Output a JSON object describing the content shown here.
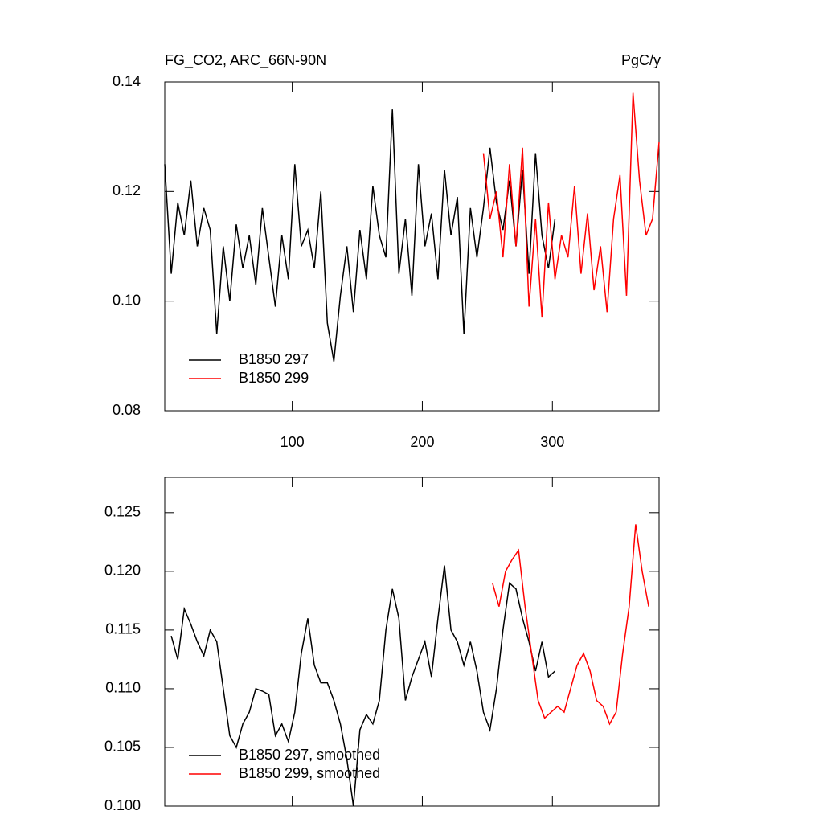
{
  "chart_data": [
    {
      "type": "line",
      "title": "FG_CO2, ARC_66N-90N",
      "units": "PgC/y",
      "xlim": [
        2,
        382
      ],
      "xticks": [
        100,
        200,
        300
      ],
      "xtick_labels": true,
      "ylim": [
        0.08,
        0.14
      ],
      "yticks": [
        0.08,
        {
          "value": 0.1,
          "label": "0.10"
        },
        0.12,
        0.14
      ],
      "legend": "lower left",
      "series": [
        {
          "name": "B1850 297",
          "color": "#000000",
          "x": [
            2,
            7,
            12,
            17,
            22,
            27,
            32,
            37,
            42,
            47,
            52,
            57,
            62,
            67,
            72,
            77,
            82,
            87,
            92,
            97,
            102,
            107,
            112,
            117,
            122,
            127,
            132,
            137,
            142,
            147,
            152,
            157,
            162,
            167,
            172,
            177,
            182,
            187,
            192,
            197,
            202,
            207,
            212,
            217,
            222,
            227,
            232,
            237,
            242,
            247,
            252,
            257,
            262,
            267,
            272,
            277,
            282,
            287,
            292,
            297,
            302
          ],
          "values": [
            0.125,
            0.105,
            0.118,
            0.112,
            0.122,
            0.11,
            0.117,
            0.113,
            0.094,
            0.11,
            0.1,
            0.114,
            0.106,
            0.112,
            0.103,
            0.117,
            0.108,
            0.099,
            0.112,
            0.104,
            0.125,
            0.11,
            0.113,
            0.106,
            0.12,
            0.096,
            0.089,
            0.101,
            0.11,
            0.098,
            0.113,
            0.104,
            0.121,
            0.112,
            0.108,
            0.135,
            0.105,
            0.115,
            0.101,
            0.125,
            0.11,
            0.116,
            0.104,
            0.124,
            0.112,
            0.119,
            0.094,
            0.117,
            0.108,
            0.117,
            0.128,
            0.118,
            0.113,
            0.122,
            0.11,
            0.124,
            0.105,
            0.127,
            0.112,
            0.106,
            0.115
          ]
        },
        {
          "name": "B1850 299",
          "color": "#ff0000",
          "x": [
            247,
            252,
            257,
            262,
            267,
            272,
            277,
            282,
            287,
            292,
            297,
            302,
            307,
            312,
            317,
            322,
            327,
            332,
            337,
            342,
            347,
            352,
            357,
            362,
            367,
            372,
            377,
            382
          ],
          "values": [
            0.127,
            0.115,
            0.12,
            0.108,
            0.125,
            0.11,
            0.128,
            0.099,
            0.115,
            0.097,
            0.118,
            0.104,
            0.112,
            0.108,
            0.121,
            0.105,
            0.116,
            0.102,
            0.11,
            0.098,
            0.115,
            0.123,
            0.101,
            0.138,
            0.122,
            0.112,
            0.115,
            0.129
          ]
        }
      ]
    },
    {
      "type": "line",
      "xlim": [
        2,
        382
      ],
      "xticks": [
        100,
        200,
        300
      ],
      "xtick_labels": false,
      "ylim": [
        0.1,
        0.128
      ],
      "yticks": [
        {
          "value": 0.1,
          "label": "0.100"
        },
        0.105,
        {
          "value": 0.11,
          "label": "0.110"
        },
        0.115,
        {
          "value": 0.12,
          "label": "0.120"
        },
        0.125
      ],
      "legend": "lower left",
      "series": [
        {
          "name": "B1850 297, smoothed",
          "color": "#000000",
          "x": [
            7,
            12,
            17,
            22,
            27,
            32,
            37,
            42,
            47,
            52,
            57,
            62,
            67,
            72,
            77,
            82,
            87,
            92,
            97,
            102,
            107,
            112,
            117,
            122,
            127,
            132,
            137,
            142,
            147,
            152,
            157,
            162,
            167,
            172,
            177,
            182,
            187,
            192,
            197,
            202,
            207,
            212,
            217,
            222,
            227,
            232,
            237,
            242,
            247,
            252,
            257,
            262,
            267,
            272,
            277,
            282,
            287,
            292,
            297,
            302
          ],
          "values": [
            0.1145,
            0.1125,
            0.1168,
            0.1155,
            0.114,
            0.1128,
            0.115,
            0.114,
            0.11,
            0.106,
            0.105,
            0.107,
            0.108,
            0.11,
            0.1098,
            0.1095,
            0.106,
            0.107,
            0.1055,
            0.108,
            0.113,
            0.116,
            0.112,
            0.1105,
            0.1105,
            0.109,
            0.107,
            0.104,
            0.1,
            0.1065,
            0.1078,
            0.107,
            0.109,
            0.115,
            0.1185,
            0.116,
            0.109,
            0.111,
            0.1125,
            0.114,
            0.111,
            0.116,
            0.1205,
            0.115,
            0.114,
            0.112,
            0.114,
            0.1115,
            0.108,
            0.1065,
            0.11,
            0.115,
            0.119,
            0.1185,
            0.116,
            0.114,
            0.1115,
            0.114,
            0.111,
            0.1115
          ]
        },
        {
          "name": "B1850 299, smoothed",
          "color": "#ff0000",
          "x": [
            254,
            259,
            264,
            269,
            274,
            279,
            284,
            289,
            294,
            299,
            304,
            309,
            314,
            319,
            324,
            329,
            334,
            339,
            344,
            349,
            354,
            359,
            364,
            369,
            374
          ],
          "values": [
            0.119,
            0.117,
            0.12,
            0.121,
            0.1218,
            0.117,
            0.113,
            0.109,
            0.1075,
            0.108,
            0.1085,
            0.108,
            0.11,
            0.112,
            0.113,
            0.1115,
            0.109,
            0.1085,
            0.107,
            0.108,
            0.113,
            0.117,
            0.124,
            0.12,
            0.117
          ]
        }
      ]
    }
  ]
}
